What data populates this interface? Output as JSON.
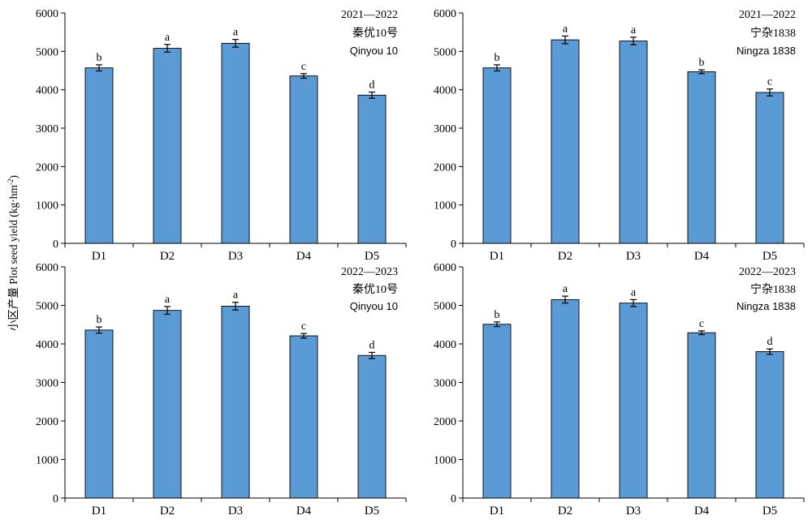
{
  "shared_ylabel": {
    "text": "小区产量 Plot seed yield (kg·hm",
    "superscript": "-2",
    "suffix": ")"
  },
  "colors": {
    "bar": "#5b9bd5",
    "axis": "#000000",
    "background": "#ffffff"
  },
  "chart_data": [
    {
      "type": "bar",
      "annotation": [
        "2021—2022",
        "秦优10号",
        "Qinyou 10"
      ],
      "categories": [
        "D1",
        "D2",
        "D3",
        "D4",
        "D5"
      ],
      "values": [
        4570,
        5080,
        5210,
        4360,
        3860
      ],
      "errors": [
        80,
        100,
        100,
        60,
        80
      ],
      "letters": [
        "b",
        "a",
        "a",
        "c",
        "d"
      ],
      "ylim": [
        0,
        6000
      ],
      "yticks": [
        0,
        1000,
        2000,
        3000,
        4000,
        5000,
        6000
      ],
      "grid": false
    },
    {
      "type": "bar",
      "annotation": [
        "2021—2022",
        "宁杂1838",
        "Ningza 1838"
      ],
      "categories": [
        "D1",
        "D2",
        "D3",
        "D4",
        "D5"
      ],
      "values": [
        4570,
        5300,
        5270,
        4470,
        3930
      ],
      "errors": [
        80,
        100,
        100,
        50,
        90
      ],
      "letters": [
        "b",
        "a",
        "a",
        "b",
        "c"
      ],
      "ylim": [
        0,
        6000
      ],
      "yticks": [
        0,
        1000,
        2000,
        3000,
        4000,
        5000,
        6000
      ],
      "grid": false
    },
    {
      "type": "bar",
      "annotation": [
        "2022—2023",
        "秦优10号",
        "Qinyou 10"
      ],
      "categories": [
        "D1",
        "D2",
        "D3",
        "D4",
        "D5"
      ],
      "values": [
        4360,
        4870,
        4980,
        4210,
        3700
      ],
      "errors": [
        80,
        100,
        100,
        60,
        80
      ],
      "letters": [
        "b",
        "a",
        "a",
        "c",
        "d"
      ],
      "ylim": [
        0,
        6000
      ],
      "yticks": [
        0,
        1000,
        2000,
        3000,
        4000,
        5000,
        6000
      ],
      "grid": false
    },
    {
      "type": "bar",
      "annotation": [
        "2022—2023",
        "宁杂1838",
        "Ningza 1838"
      ],
      "categories": [
        "D1",
        "D2",
        "D3",
        "D4",
        "D5"
      ],
      "values": [
        4510,
        5150,
        5060,
        4290,
        3800
      ],
      "errors": [
        60,
        90,
        90,
        50,
        70
      ],
      "letters": [
        "b",
        "a",
        "a",
        "c",
        "d"
      ],
      "ylim": [
        0,
        6000
      ],
      "yticks": [
        0,
        1000,
        2000,
        3000,
        4000,
        5000,
        6000
      ],
      "grid": false
    }
  ]
}
